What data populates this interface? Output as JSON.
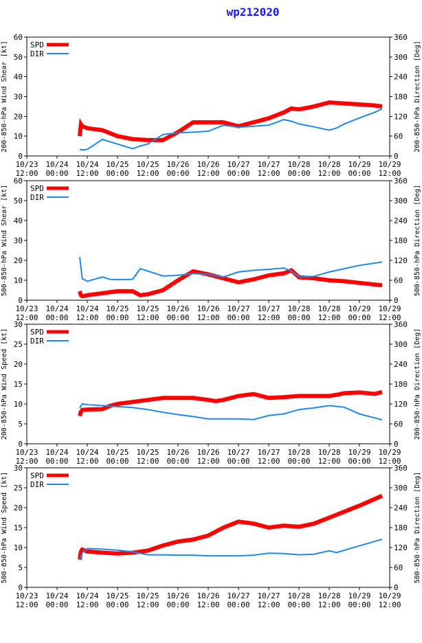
{
  "title": "wp212020",
  "colors": {
    "spd": "#ff0000",
    "dir": "#1e88e5",
    "title": "#1a1aff"
  },
  "chart_data": [
    {
      "type": "line",
      "ylabel_left": "200-850-hPa Wind Shear [kt]",
      "ylabel_right": "200-850-hPa Direction [Deg]",
      "ylim_left": [
        0,
        60
      ],
      "yticks_left": [
        "0",
        "10",
        "20",
        "30",
        "40",
        "50",
        "60"
      ],
      "ylim_right": [
        0,
        360
      ],
      "yticks_right": [
        "0",
        "60",
        "120",
        "180",
        "240",
        "300",
        "360"
      ],
      "xlim": [
        0,
        6
      ],
      "xticks": [
        {
          "date": "10/23",
          "time": "12:00"
        },
        {
          "date": "10/24",
          "time": "00:00"
        },
        {
          "date": "10/24",
          "time": "12:00"
        },
        {
          "date": "10/25",
          "time": "00:00"
        },
        {
          "date": "10/25",
          "time": "12:00"
        },
        {
          "date": "10/26",
          "time": "00:00"
        },
        {
          "date": "10/26",
          "time": "12:00"
        },
        {
          "date": "10/27",
          "time": "00:00"
        },
        {
          "date": "10/27",
          "time": "12:00"
        },
        {
          "date": "10/28",
          "time": "00:00"
        },
        {
          "date": "10/28",
          "time": "12:00"
        },
        {
          "date": "10/29",
          "time": "00:00"
        },
        {
          "date": "10/29",
          "time": "12:00"
        }
      ],
      "legend": [
        "SPD",
        "DIR"
      ],
      "series": [
        {
          "name": "SPD",
          "axis": "left",
          "x": [
            0.875,
            0.895,
            0.917,
            1,
            1.25,
            1.5,
            1.75,
            2,
            2.25,
            2.5,
            2.75,
            3,
            3.25,
            3.5,
            3.75,
            4,
            4.25,
            4.375,
            4.5,
            4.75,
            5,
            5.25,
            5.5,
            5.75,
            5.875
          ],
          "y": [
            10,
            16,
            15,
            14,
            13,
            10,
            8.5,
            8,
            8,
            12,
            17,
            17,
            17,
            15,
            17,
            19,
            22,
            24,
            23.5,
            25,
            27,
            26.5,
            26,
            25.5,
            25
          ]
        },
        {
          "name": "DIR",
          "axis": "right",
          "x": [
            0.875,
            0.917,
            1,
            1.25,
            1.5,
            1.75,
            1.875,
            2,
            2.25,
            2.5,
            2.75,
            3,
            3.25,
            3.5,
            3.75,
            4,
            4.25,
            4.375,
            4.5,
            4.75,
            5,
            5.125,
            5.25,
            5.5,
            5.75,
            5.875
          ],
          "y": [
            20,
            18,
            20,
            50,
            36,
            22,
            30,
            36,
            65,
            70,
            72,
            75,
            93,
            87,
            90,
            93,
            110,
            105,
            97,
            88,
            78,
            85,
            97,
            115,
            132,
            143
          ]
        }
      ]
    },
    {
      "type": "line",
      "ylabel_left": "500-850-hPa Wind Shear [kt]",
      "ylabel_right": "500-850-hPa Direction [Deg]",
      "ylim_left": [
        0,
        60
      ],
      "yticks_left": [
        "0",
        "10",
        "20",
        "30",
        "40",
        "50",
        "60"
      ],
      "ylim_right": [
        0,
        360
      ],
      "yticks_right": [
        "0",
        "60",
        "120",
        "180",
        "240",
        "300",
        "360"
      ],
      "xlim": [
        0,
        6
      ],
      "xticks": [
        {
          "date": "10/23",
          "time": "12:00"
        },
        {
          "date": "10/24",
          "time": "00:00"
        },
        {
          "date": "10/24",
          "time": "12:00"
        },
        {
          "date": "10/25",
          "time": "00:00"
        },
        {
          "date": "10/25",
          "time": "12:00"
        },
        {
          "date": "10/26",
          "time": "00:00"
        },
        {
          "date": "10/26",
          "time": "12:00"
        },
        {
          "date": "10/27",
          "time": "00:00"
        },
        {
          "date": "10/27",
          "time": "12:00"
        },
        {
          "date": "10/28",
          "time": "00:00"
        },
        {
          "date": "10/28",
          "time": "12:00"
        },
        {
          "date": "10/29",
          "time": "00:00"
        },
        {
          "date": "10/29",
          "time": "12:00"
        }
      ],
      "legend": [
        "SPD",
        "DIR"
      ],
      "series": [
        {
          "name": "SPD",
          "axis": "left",
          "x": [
            0.875,
            0.895,
            0.917,
            1,
            1.25,
            1.5,
            1.75,
            1.875,
            2,
            2.25,
            2.5,
            2.75,
            3,
            3.25,
            3.5,
            3.75,
            4,
            4.25,
            4.375,
            4.5,
            4.75,
            5,
            5.25,
            5.5,
            5.875
          ],
          "y": [
            4.5,
            2.5,
            2,
            2.5,
            3.5,
            4.5,
            4.5,
            2.5,
            3,
            5,
            10,
            14.5,
            13,
            11,
            9,
            10.5,
            12.5,
            13.5,
            15,
            11.5,
            11,
            10,
            9.5,
            8.7,
            7.5
          ]
        },
        {
          "name": "DIR",
          "axis": "right",
          "x": [
            0.875,
            0.917,
            1,
            1.25,
            1.375,
            1.5,
            1.75,
            1.875,
            2,
            2.25,
            2.5,
            2.75,
            3,
            3.25,
            3.5,
            3.75,
            4,
            4.25,
            4.375,
            4.5,
            4.75,
            5,
            5.25,
            5.5,
            5.875
          ],
          "y": [
            130,
            65,
            57,
            70,
            63,
            62,
            63,
            95,
            88,
            73,
            75,
            80,
            78,
            70,
            85,
            90,
            93,
            97,
            88,
            70,
            72,
            85,
            95,
            105,
            115
          ]
        }
      ]
    },
    {
      "type": "line",
      "ylabel_left": "200-850-hPa Wind Speed [kt]",
      "ylabel_right": "200-850-hPa Direction [Deg]",
      "ylim_left": [
        0,
        30
      ],
      "yticks_left": [
        "0",
        "5",
        "10",
        "15",
        "20",
        "25",
        "30"
      ],
      "ylim_right": [
        0,
        360
      ],
      "yticks_right": [
        "0",
        "60",
        "120",
        "180",
        "240",
        "300",
        "360"
      ],
      "xlim": [
        0,
        6
      ],
      "xticks": [
        {
          "date": "10/23",
          "time": "12:00"
        },
        {
          "date": "10/24",
          "time": "00:00"
        },
        {
          "date": "10/24",
          "time": "12:00"
        },
        {
          "date": "10/25",
          "time": "00:00"
        },
        {
          "date": "10/25",
          "time": "12:00"
        },
        {
          "date": "10/26",
          "time": "00:00"
        },
        {
          "date": "10/26",
          "time": "12:00"
        },
        {
          "date": "10/27",
          "time": "00:00"
        },
        {
          "date": "10/27",
          "time": "12:00"
        },
        {
          "date": "10/28",
          "time": "00:00"
        },
        {
          "date": "10/28",
          "time": "12:00"
        },
        {
          "date": "10/29",
          "time": "00:00"
        },
        {
          "date": "10/29",
          "time": "12:00"
        }
      ],
      "legend": [
        "SPD",
        "DIR"
      ],
      "series": [
        {
          "name": "SPD",
          "axis": "left",
          "x": [
            0.875,
            0.895,
            0.917,
            1,
            1.25,
            1.375,
            1.5,
            1.75,
            2,
            2.25,
            2.5,
            2.75,
            3,
            3.125,
            3.25,
            3.5,
            3.75,
            4,
            4.25,
            4.5,
            4.75,
            5,
            5.125,
            5.25,
            5.5,
            5.75,
            5.875
          ],
          "y": [
            7,
            8,
            8.5,
            8.6,
            8.7,
            9.5,
            10,
            10.5,
            11,
            11.5,
            11.5,
            11.5,
            11,
            10.7,
            11,
            12,
            12.5,
            11.5,
            11.7,
            12,
            12,
            12,
            12.3,
            12.7,
            12.9,
            12.5,
            13
          ]
        },
        {
          "name": "DIR",
          "axis": "right",
          "x": [
            0.875,
            0.917,
            1,
            1.25,
            1.5,
            1.75,
            2,
            2.25,
            2.5,
            2.75,
            3,
            3.25,
            3.5,
            3.75,
            4,
            4.25,
            4.5,
            4.75,
            5,
            5.25,
            5.5,
            5.875
          ],
          "y": [
            108,
            120,
            118,
            115,
            112,
            109,
            103,
            95,
            88,
            82,
            75,
            75,
            75,
            73,
            85,
            90,
            103,
            108,
            115,
            110,
            90,
            72
          ]
        }
      ]
    },
    {
      "type": "line",
      "ylabel_left": "500-850-hPa Wind Speed [kt]",
      "ylabel_right": "500-850-hPa Direction [Deg]",
      "ylim_left": [
        0,
        30
      ],
      "yticks_left": [
        "0",
        "5",
        "10",
        "15",
        "20",
        "25",
        "30"
      ],
      "ylim_right": [
        0,
        360
      ],
      "yticks_right": [
        "0",
        "60",
        "120",
        "180",
        "240",
        "300",
        "360"
      ],
      "xlim": [
        0,
        6
      ],
      "xticks": [
        {
          "date": "10/23",
          "time": "12:00"
        },
        {
          "date": "10/24",
          "time": "00:00"
        },
        {
          "date": "10/24",
          "time": "12:00"
        },
        {
          "date": "10/25",
          "time": "00:00"
        },
        {
          "date": "10/25",
          "time": "12:00"
        },
        {
          "date": "10/26",
          "time": "00:00"
        },
        {
          "date": "10/26",
          "time": "12:00"
        },
        {
          "date": "10/27",
          "time": "00:00"
        },
        {
          "date": "10/27",
          "time": "12:00"
        },
        {
          "date": "10/28",
          "time": "00:00"
        },
        {
          "date": "10/28",
          "time": "12:00"
        },
        {
          "date": "10/29",
          "time": "00:00"
        },
        {
          "date": "10/29",
          "time": "12:00"
        }
      ],
      "legend": [
        "SPD",
        "DIR"
      ],
      "series": [
        {
          "name": "SPD",
          "axis": "left",
          "x": [
            0.875,
            0.895,
            0.917,
            1,
            1.25,
            1.5,
            1.75,
            2,
            2.25,
            2.5,
            2.75,
            3,
            3.25,
            3.5,
            3.75,
            4,
            4.25,
            4.5,
            4.75,
            5,
            5.25,
            5.5,
            5.875
          ],
          "y": [
            7,
            9,
            9.5,
            9,
            8.7,
            8.5,
            8.7,
            9.2,
            10.5,
            11.5,
            12,
            13,
            15,
            16.5,
            16,
            15,
            15.5,
            15.2,
            16,
            17.5,
            19,
            20.5,
            23
          ]
        },
        {
          "name": "DIR",
          "axis": "right",
          "x": [
            0.875,
            0.917,
            1,
            1.25,
            1.5,
            1.75,
            2,
            2.25,
            2.5,
            2.75,
            3,
            3.25,
            3.5,
            3.75,
            4,
            4.25,
            4.5,
            4.75,
            5,
            5.125,
            5.25,
            5.5,
            5.875
          ],
          "y": [
            82,
            105,
            117,
            115,
            112,
            107,
            98,
            98,
            97,
            97,
            95,
            95,
            95,
            97,
            103,
            102,
            98,
            100,
            110,
            105,
            112,
            125,
            145
          ]
        }
      ]
    }
  ]
}
